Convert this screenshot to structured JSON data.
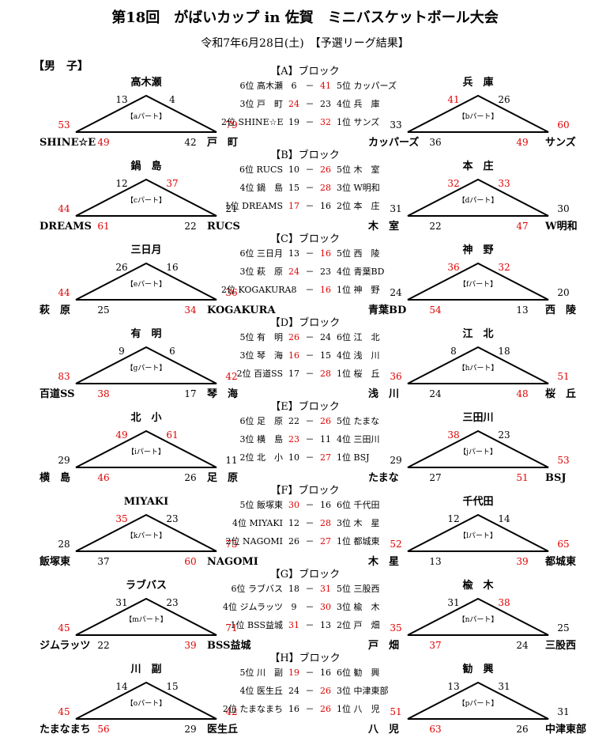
{
  "title": "第18回　がばいカップ in 佐賀　ミニバスケットボール大会",
  "subtitle": "令和7年6月28日(土)　【予選リーグ結果】",
  "gender": "【男　子】",
  "colors": {
    "win": "#e00000",
    "text": "#000000"
  },
  "blocks": [
    {
      "label": "【A】ブロック",
      "left": {
        "part": "【aパート】",
        "top": "高木瀬",
        "bl": "SHINE☆E",
        "br": "戸　町",
        "s": [
          {
            "v": "13",
            "w": false
          },
          {
            "v": "4",
            "w": false
          },
          {
            "v": "53",
            "w": true
          },
          {
            "v": "79",
            "w": true
          },
          {
            "v": "49",
            "w": true
          },
          {
            "v": "42",
            "w": false
          }
        ]
      },
      "right": {
        "part": "【bパート】",
        "top": "兵　庫",
        "bl": "カッパーズ",
        "br": "サンズ",
        "s": [
          {
            "v": "41",
            "w": true
          },
          {
            "v": "26",
            "w": false
          },
          {
            "v": "33",
            "w": false
          },
          {
            "v": "60",
            "w": true
          },
          {
            "v": "36",
            "w": false
          },
          {
            "v": "49",
            "w": true
          }
        ]
      },
      "rows": [
        {
          "l": "6位 高木瀬",
          "a": "6",
          "aw": false,
          "b": "41",
          "bw": true,
          "r": "5位 カッパーズ"
        },
        {
          "l": "3位 戸　町",
          "a": "24",
          "aw": true,
          "b": "23",
          "bw": false,
          "r": "4位 兵　庫"
        },
        {
          "l": "2位 SHINE☆E",
          "a": "19",
          "aw": false,
          "b": "32",
          "bw": true,
          "r": "1位 サンズ"
        }
      ]
    },
    {
      "label": "【B】ブロック",
      "left": {
        "part": "【cパート】",
        "top": "鍋　島",
        "bl": "DREAMS",
        "br": "RUCS",
        "s": [
          {
            "v": "12",
            "w": false
          },
          {
            "v": "37",
            "w": true
          },
          {
            "v": "44",
            "w": true
          },
          {
            "v": "21",
            "w": false
          },
          {
            "v": "61",
            "w": true
          },
          {
            "v": "22",
            "w": false
          }
        ]
      },
      "right": {
        "part": "【dパート】",
        "top": "本　庄",
        "bl": "木　室",
        "br": "W明和",
        "s": [
          {
            "v": "32",
            "w": true
          },
          {
            "v": "33",
            "w": true
          },
          {
            "v": "31",
            "w": false
          },
          {
            "v": "30",
            "w": false
          },
          {
            "v": "22",
            "w": false
          },
          {
            "v": "47",
            "w": true
          }
        ]
      },
      "rows": [
        {
          "l": "6位 RUCS",
          "a": "10",
          "aw": false,
          "b": "26",
          "bw": true,
          "r": "5位 木　室"
        },
        {
          "l": "4位 鍋　島",
          "a": "15",
          "aw": false,
          "b": "28",
          "bw": true,
          "r": "3位 W明和"
        },
        {
          "l": "1位 DREAMS",
          "a": "17",
          "aw": true,
          "b": "16",
          "bw": false,
          "r": "2位 本　庄"
        }
      ]
    },
    {
      "label": "【C】ブロック",
      "left": {
        "part": "【eパート】",
        "top": "三日月",
        "bl": "萩　原",
        "br": "KOGAKURA",
        "s": [
          {
            "v": "26",
            "w": false
          },
          {
            "v": "16",
            "w": false
          },
          {
            "v": "44",
            "w": true
          },
          {
            "v": "36",
            "w": true
          },
          {
            "v": "25",
            "w": false
          },
          {
            "v": "34",
            "w": true
          }
        ]
      },
      "right": {
        "part": "【fパート】",
        "top": "神　野",
        "bl": "青葉BD",
        "br": "西　陵",
        "s": [
          {
            "v": "36",
            "w": true
          },
          {
            "v": "32",
            "w": true
          },
          {
            "v": "24",
            "w": false
          },
          {
            "v": "20",
            "w": false
          },
          {
            "v": "54",
            "w": true
          },
          {
            "v": "13",
            "w": false
          }
        ]
      },
      "rows": [
        {
          "l": "6位 三日月",
          "a": "13",
          "aw": false,
          "b": "16",
          "bw": true,
          "r": "5位 西　陵"
        },
        {
          "l": "3位 萩　原",
          "a": "24",
          "aw": true,
          "b": "23",
          "bw": false,
          "r": "4位 青葉BD"
        },
        {
          "l": "2位 KOGAKURA",
          "a": "8",
          "aw": false,
          "b": "16",
          "bw": true,
          "r": "1位 神　野"
        }
      ]
    },
    {
      "label": "【D】ブロック",
      "left": {
        "part": "【gパート】",
        "top": "有　明",
        "bl": "百道SS",
        "br": "琴　海",
        "s": [
          {
            "v": "9",
            "w": false
          },
          {
            "v": "6",
            "w": false
          },
          {
            "v": "83",
            "w": true
          },
          {
            "v": "42",
            "w": true
          },
          {
            "v": "38",
            "w": true
          },
          {
            "v": "17",
            "w": false
          }
        ]
      },
      "right": {
        "part": "【hパート】",
        "top": "江　北",
        "bl": "浅　川",
        "br": "桜　丘",
        "s": [
          {
            "v": "8",
            "w": false
          },
          {
            "v": "18",
            "w": false
          },
          {
            "v": "36",
            "w": true
          },
          {
            "v": "51",
            "w": true
          },
          {
            "v": "24",
            "w": false
          },
          {
            "v": "48",
            "w": true
          }
        ]
      },
      "rows": [
        {
          "l": "5位 有　明",
          "a": "26",
          "aw": true,
          "b": "24",
          "bw": false,
          "r": "6位 江　北"
        },
        {
          "l": "3位 琴　海",
          "a": "16",
          "aw": true,
          "b": "15",
          "bw": false,
          "r": "4位 浅　川"
        },
        {
          "l": "2位 百道SS",
          "a": "17",
          "aw": false,
          "b": "28",
          "bw": true,
          "r": "1位 桜　丘"
        }
      ]
    },
    {
      "label": "【E】ブロック",
      "left": {
        "part": "【iパート】",
        "top": "北　小",
        "bl": "横　島",
        "br": "足　原",
        "s": [
          {
            "v": "49",
            "w": true
          },
          {
            "v": "61",
            "w": true
          },
          {
            "v": "29",
            "w": false
          },
          {
            "v": "11",
            "w": false
          },
          {
            "v": "46",
            "w": true
          },
          {
            "v": "26",
            "w": false
          }
        ]
      },
      "right": {
        "part": "【jパート】",
        "top": "三田川",
        "bl": "たまな",
        "br": "BSJ",
        "s": [
          {
            "v": "38",
            "w": true
          },
          {
            "v": "23",
            "w": false
          },
          {
            "v": "29",
            "w": false
          },
          {
            "v": "53",
            "w": true
          },
          {
            "v": "27",
            "w": false
          },
          {
            "v": "51",
            "w": true
          }
        ]
      },
      "rows": [
        {
          "l": "6位 足　原",
          "a": "22",
          "aw": false,
          "b": "26",
          "bw": true,
          "r": "5位 たまな"
        },
        {
          "l": "3位 横　島",
          "a": "23",
          "aw": true,
          "b": "11",
          "bw": false,
          "r": "4位 三田川"
        },
        {
          "l": "2位 北　小",
          "a": "10",
          "aw": false,
          "b": "27",
          "bw": true,
          "r": "1位 BSJ"
        }
      ]
    },
    {
      "label": "【F】ブロック",
      "left": {
        "part": "【kパート】",
        "top": "MIYAKI",
        "bl": "飯塚東",
        "br": "NAGOMI",
        "s": [
          {
            "v": "35",
            "w": true
          },
          {
            "v": "23",
            "w": false
          },
          {
            "v": "28",
            "w": false
          },
          {
            "v": "75",
            "w": true
          },
          {
            "v": "37",
            "w": false
          },
          {
            "v": "60",
            "w": true
          }
        ]
      },
      "right": {
        "part": "【lパート】",
        "top": "千代田",
        "bl": "木　星",
        "br": "都城東",
        "s": [
          {
            "v": "12",
            "w": false
          },
          {
            "v": "14",
            "w": false
          },
          {
            "v": "52",
            "w": true
          },
          {
            "v": "65",
            "w": true
          },
          {
            "v": "13",
            "w": false
          },
          {
            "v": "39",
            "w": true
          }
        ]
      },
      "rows": [
        {
          "l": "5位 飯塚東",
          "a": "30",
          "aw": true,
          "b": "16",
          "bw": false,
          "r": "6位 千代田"
        },
        {
          "l": "4位 MIYAKI",
          "a": "12",
          "aw": false,
          "b": "28",
          "bw": true,
          "r": "3位 木　星"
        },
        {
          "l": "2位 NAGOMI",
          "a": "26",
          "aw": false,
          "b": "27",
          "bw": true,
          "r": "1位 都城東"
        }
      ]
    },
    {
      "label": "【G】ブロック",
      "left": {
        "part": "【mパート】",
        "top": "ラブバス",
        "bl": "ジムラッツ",
        "br": "BSS益城",
        "s": [
          {
            "v": "31",
            "w": false
          },
          {
            "v": "23",
            "w": false
          },
          {
            "v": "45",
            "w": true
          },
          {
            "v": "71",
            "w": true
          },
          {
            "v": "22",
            "w": false
          },
          {
            "v": "39",
            "w": true
          }
        ]
      },
      "right": {
        "part": "【nパート】",
        "top": "楡　木",
        "bl": "戸　畑",
        "br": "三股西",
        "s": [
          {
            "v": "31",
            "w": false
          },
          {
            "v": "38",
            "w": true
          },
          {
            "v": "35",
            "w": true
          },
          {
            "v": "25",
            "w": false
          },
          {
            "v": "37",
            "w": true
          },
          {
            "v": "24",
            "w": false
          }
        ]
      },
      "rows": [
        {
          "l": "6位 ラブバス",
          "a": "18",
          "aw": false,
          "b": "31",
          "bw": true,
          "r": "5位 三股西"
        },
        {
          "l": "4位 ジムラッツ",
          "a": "9",
          "aw": false,
          "b": "30",
          "bw": true,
          "r": "3位 楡　木"
        },
        {
          "l": "1位 BSS益城",
          "a": "31",
          "aw": true,
          "b": "13",
          "bw": false,
          "r": "2位 戸　畑"
        }
      ]
    },
    {
      "label": "【H】ブロック",
      "left": {
        "part": "【oパート】",
        "top": "川　副",
        "bl": "たまなまち",
        "br": "医生丘",
        "s": [
          {
            "v": "14",
            "w": false
          },
          {
            "v": "15",
            "w": false
          },
          {
            "v": "45",
            "w": true
          },
          {
            "v": "42",
            "w": true
          },
          {
            "v": "56",
            "w": true
          },
          {
            "v": "29",
            "w": false
          }
        ]
      },
      "right": {
        "part": "【pパート】",
        "top": "勧　興",
        "bl": "八　児",
        "br": "中津東部",
        "s": [
          {
            "v": "13",
            "w": false
          },
          {
            "v": "31",
            "w": false
          },
          {
            "v": "51",
            "w": true
          },
          {
            "v": "31",
            "w": false
          },
          {
            "v": "63",
            "w": true
          },
          {
            "v": "26",
            "w": false
          }
        ]
      },
      "rows": [
        {
          "l": "5位 川　副",
          "a": "19",
          "aw": true,
          "b": "16",
          "bw": false,
          "r": "6位 勧　興"
        },
        {
          "l": "4位 医生丘",
          "a": "24",
          "aw": false,
          "b": "26",
          "bw": true,
          "r": "3位 中津東部"
        },
        {
          "l": "2位 たまなまち",
          "a": "16",
          "aw": false,
          "b": "26",
          "bw": true,
          "r": "1位 八　児"
        }
      ]
    }
  ]
}
